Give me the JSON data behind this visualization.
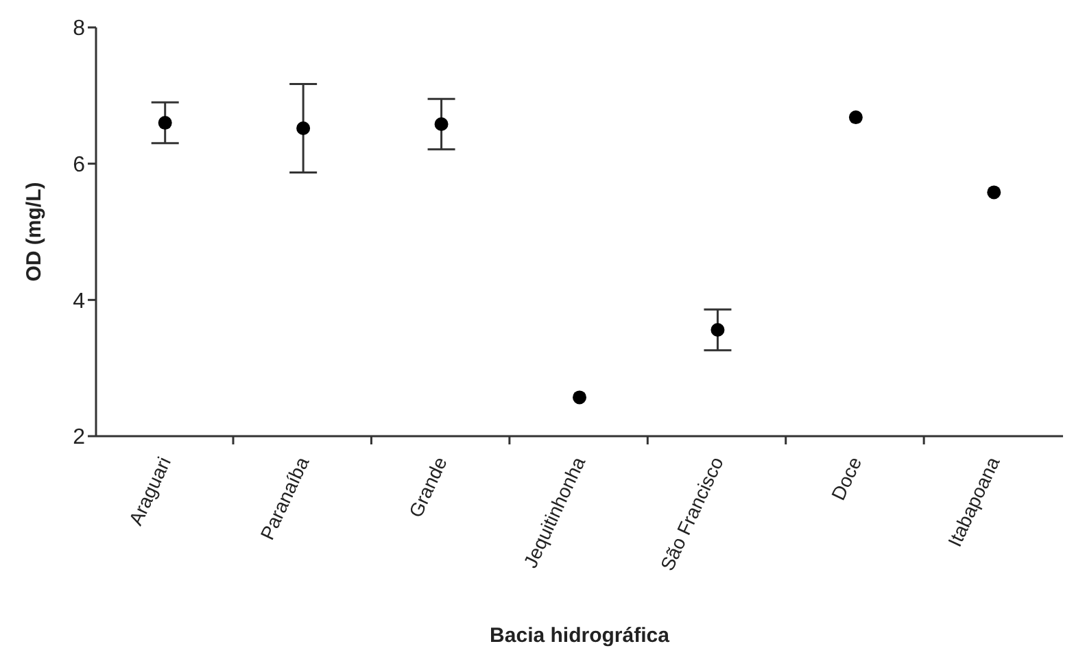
{
  "chart_data": {
    "type": "scatter",
    "xlabel": "Bacia hidrográfica",
    "ylabel": "OD (mg/L)",
    "categories": [
      "Araguari",
      "Paranaíba",
      "Grande",
      "Jequitinhonha",
      "São Francisco",
      "Doce",
      "Itabapoana"
    ],
    "values": [
      6.6,
      6.52,
      6.58,
      2.57,
      3.56,
      6.68,
      5.58
    ],
    "errors": [
      0.3,
      0.65,
      0.37,
      null,
      0.3,
      null,
      null
    ],
    "color": "#000000",
    "marker": "circle",
    "ylim": [
      2,
      8
    ],
    "yticks": [
      2,
      4,
      6,
      8
    ],
    "grid": false,
    "legend": false
  }
}
